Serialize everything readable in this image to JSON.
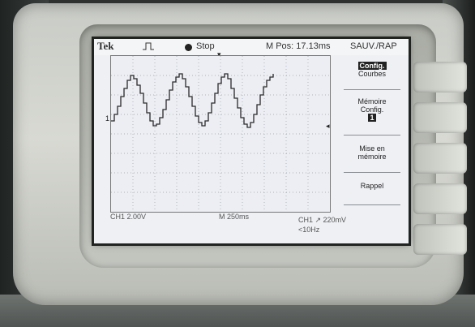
{
  "header": {
    "brand": "Tek",
    "status": "Stop",
    "position": "M Pos: 17.13ms",
    "menu_title": "SAUV./RAP"
  },
  "menu": {
    "items": [
      {
        "line1": "Config.",
        "line2": "Courbes"
      },
      {
        "line1": "Mémoire",
        "line2": "Config.",
        "line3": "1"
      },
      {
        "line1": "Mise en",
        "line2": "mémoire"
      },
      {
        "line1": "Rappel"
      }
    ]
  },
  "footer": {
    "channel": "CH1 2.00V",
    "timebase": "M 250ms",
    "trigger": "CH1 ↗ 220mV",
    "frequency": "<10Hz"
  },
  "markers": {
    "channel_marker": "1",
    "trigger_arrow": "▾",
    "level_arrow": "◂"
  },
  "colors": {
    "trace": "#2a2a2a",
    "grid": "#9aa0a8",
    "screen": "#eef0f4"
  }
}
